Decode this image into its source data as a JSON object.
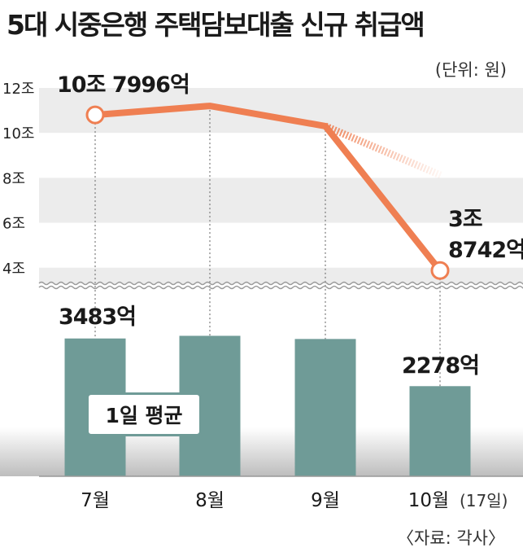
{
  "title": "5대 시중은행 주택담보대출 신규 취급액",
  "unit_label": "(단위: 원)",
  "source_label": "〈자료: 각사〉",
  "colors": {
    "line": "#ef7f52",
    "bar": "#6f9b97",
    "band": "#ececec",
    "legend_border": "#6f9b97"
  },
  "chart_data": {
    "type": "bar+line",
    "categories": [
      "7월",
      "8월",
      "9월",
      "10월"
    ],
    "category_note": "(17일)",
    "line": {
      "values": [
        10.7996,
        11.2,
        10.3,
        3.8742
      ],
      "labels": [
        "10조 7996억",
        "",
        "",
        "3조 8742억"
      ],
      "y_ticks": [
        "12조",
        "10조",
        "8조",
        "6조",
        "4조"
      ],
      "y_tick_values": [
        12,
        10,
        8,
        6,
        4
      ],
      "ylim": [
        4,
        12
      ],
      "axis_break": true,
      "projection": "dashed continuation after 9월"
    },
    "bars": {
      "name": "1일 평균",
      "values": [
        3483,
        3550,
        3470,
        2278
      ],
      "labels": [
        "3483억",
        "",
        "",
        "2278억"
      ],
      "unit": "억"
    }
  }
}
